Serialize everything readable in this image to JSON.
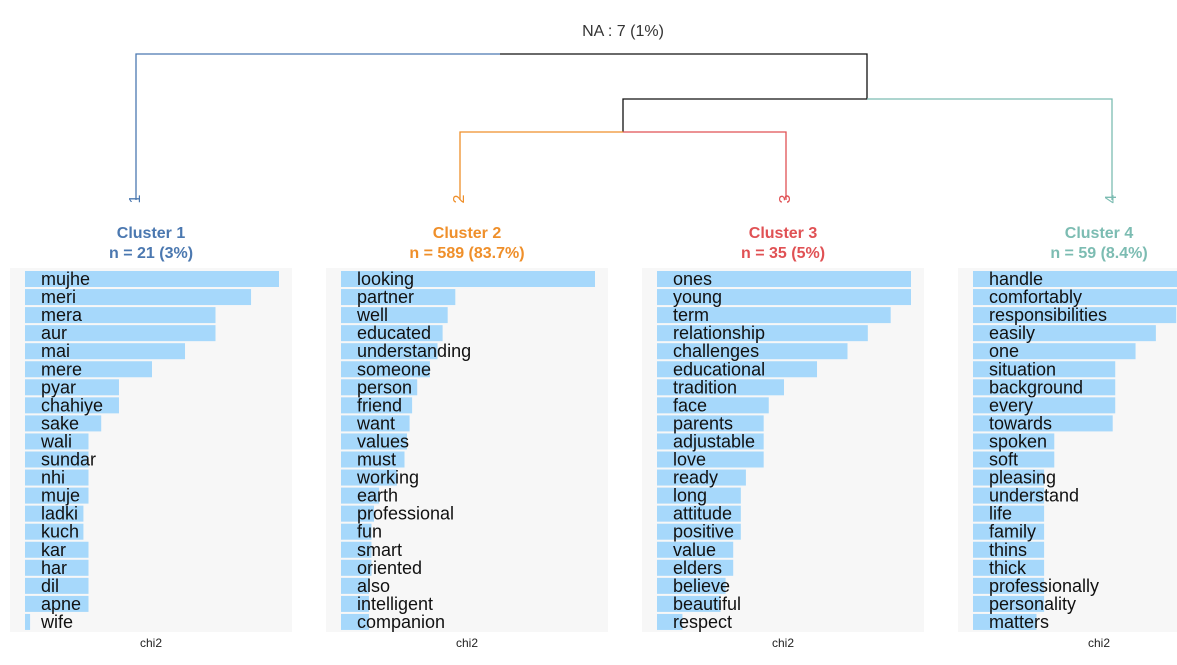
{
  "na_label": "NA : 7 (1%)",
  "axis_label": "chi2",
  "colors": {
    "cluster1": "#4b78b0",
    "cluster2": "#ef8f2a",
    "cluster3": "#e05154",
    "cluster4": "#7cbcb2",
    "root": "#111111",
    "bar": "#a6d8fb",
    "panel": "#f7f7f7"
  },
  "chart_data": {
    "type": "bar",
    "orientation": "horizontal",
    "title": "Rainette-style cluster dendrogram with chi2 keyword bars",
    "xlabel": "chi2",
    "na": {
      "count": 7,
      "percent": "1%"
    },
    "clusters": [
      {
        "id": 1,
        "branch_label": "1",
        "title": "Cluster 1",
        "n_label": "n = 21 (3%)",
        "color": "#4b78b0",
        "words": [
          "mujhe",
          "meri",
          "mera",
          "aur",
          "mai",
          "mere",
          "pyar",
          "chahiye",
          "sake",
          "wali",
          "sundar",
          "nhi",
          "muje",
          "ladki",
          "kuch",
          "kar",
          "har",
          "dil",
          "apne",
          "wife"
        ],
        "values": [
          100,
          89,
          75,
          75,
          63,
          50,
          37,
          37,
          30,
          25,
          25,
          25,
          25,
          23,
          23,
          25,
          25,
          25,
          25,
          2
        ]
      },
      {
        "id": 2,
        "branch_label": "2",
        "title": "Cluster 2",
        "n_label": "n = 589 (83.7%)",
        "color": "#ef8f2a",
        "words": [
          "looking",
          "partner",
          "well",
          "educated",
          "understanding",
          "someone",
          "person",
          "friend",
          "want",
          "values",
          "must",
          "working",
          "earth",
          "professional",
          "fun",
          "smart",
          "oriented",
          "also",
          "intelligent",
          "companion"
        ],
        "values": [
          100,
          45,
          42,
          40,
          38,
          35,
          30,
          28,
          27,
          26,
          25,
          22,
          15,
          13,
          12,
          12,
          12,
          11,
          11,
          11
        ]
      },
      {
        "id": 3,
        "branch_label": "3",
        "title": "Cluster 3",
        "n_label": "n = 35 (5%)",
        "color": "#e05154",
        "words": [
          "ones",
          "young",
          "term",
          "relationship",
          "challenges",
          "educational",
          "tradition",
          "face",
          "parents",
          "adjustable",
          "love",
          "ready",
          "long",
          "attitude",
          "positive",
          "value",
          "elders",
          "believe",
          "beautiful",
          "respect"
        ],
        "values": [
          100,
          100,
          92,
          83,
          75,
          63,
          50,
          44,
          42,
          42,
          42,
          35,
          33,
          33,
          33,
          30,
          30,
          27,
          25,
          10
        ]
      },
      {
        "id": 4,
        "branch_label": "4",
        "title": "Cluster 4",
        "n_label": "n = 59 (8.4%)",
        "color": "#7cbcb2",
        "words": [
          "handle",
          "comfortably",
          "responsibilities",
          "easily",
          "one",
          "situation",
          "background",
          "every",
          "towards",
          "spoken",
          "soft",
          "pleasing",
          "understand",
          "life",
          "family",
          "thins",
          "thick",
          "professionally",
          "personality",
          "matters"
        ],
        "values": [
          100,
          83,
          80,
          72,
          64,
          56,
          56,
          56,
          55,
          32,
          32,
          28,
          28,
          28,
          28,
          28,
          28,
          28,
          28,
          25
        ]
      }
    ]
  }
}
